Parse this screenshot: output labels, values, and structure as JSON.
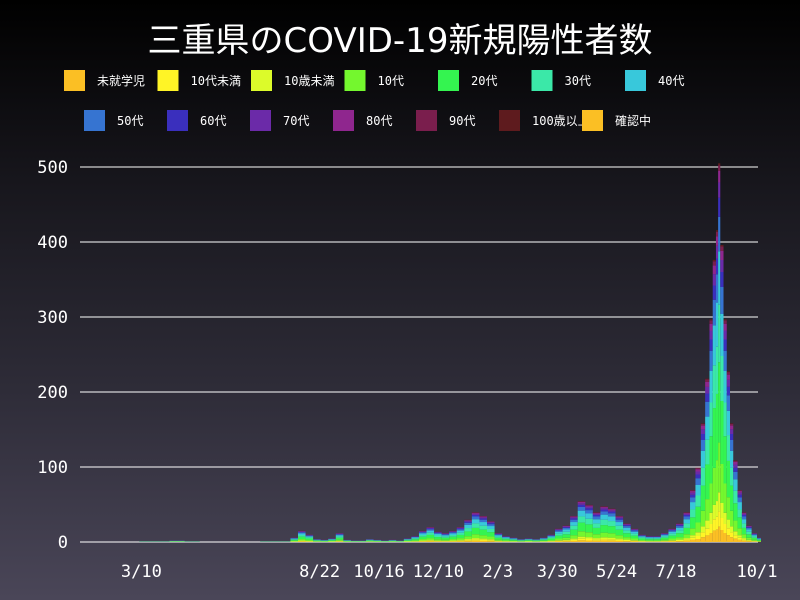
{
  "chart_data": {
    "type": "bar",
    "stacked": true,
    "title": "三重県のCOVID-19新規陽性者数",
    "xlabel": "",
    "ylabel": "",
    "ylim": [
      0,
      500
    ],
    "yticks": [
      0,
      100,
      200,
      300,
      400,
      500
    ],
    "grid": true,
    "legend_placement": "top",
    "xticks": [
      {
        "date": "2020-03-10",
        "label": "3/10"
      },
      {
        "date": "2020-08-22",
        "label": "8/22"
      },
      {
        "date": "2020-10-16",
        "label": "10/16"
      },
      {
        "date": "2020-12-10",
        "label": "12/10"
      },
      {
        "date": "2021-02-03",
        "label": "2/3"
      },
      {
        "date": "2021-03-30",
        "label": "3/30"
      },
      {
        "date": "2021-05-24",
        "label": "5/24"
      },
      {
        "date": "2021-07-18",
        "label": "7/18"
      },
      {
        "date": "2021-10-01",
        "label": "10/1"
      }
    ],
    "series": [
      {
        "name": "未就学児",
        "color": "#fbbf24",
        "share": 0.04
      },
      {
        "name": "10代未満",
        "color": "#fff426",
        "share": 0.04
      },
      {
        "name": "10歳未満",
        "color": "#dcfb2a",
        "share": 0.05
      },
      {
        "name": "10代",
        "color": "#74f72e",
        "share": 0.13
      },
      {
        "name": "20代",
        "color": "#34f450",
        "share": 0.21
      },
      {
        "name": "30代",
        "color": "#3be8a8",
        "share": 0.15
      },
      {
        "name": "40代",
        "color": "#38c8db",
        "share": 0.14
      },
      {
        "name": "50代",
        "color": "#3674d1",
        "share": 0.09
      },
      {
        "name": "60代",
        "color": "#3a2fbd",
        "share": 0.05
      },
      {
        "name": "70代",
        "color": "#6b2aa8",
        "share": 0.04
      },
      {
        "name": "80代",
        "color": "#8f268e",
        "share": 0.03
      },
      {
        "name": "90代",
        "color": "#7a1e4d",
        "share": 0.015
      },
      {
        "name": "100歳以上",
        "color": "#5e1b1e",
        "share": 0.005
      },
      {
        "name": "確認中",
        "color": "#fbbf24",
        "share": 0.0
      }
    ],
    "totals": [
      [
        "2020-01-12",
        0
      ],
      [
        "2020-01-26",
        0
      ],
      [
        "2020-02-09",
        0
      ],
      [
        "2020-02-23",
        0
      ],
      [
        "2020-03-08",
        1
      ],
      [
        "2020-03-22",
        1
      ],
      [
        "2020-04-05",
        2
      ],
      [
        "2020-04-19",
        1
      ],
      [
        "2020-05-03",
        0
      ],
      [
        "2020-05-17",
        0
      ],
      [
        "2020-05-31",
        0
      ],
      [
        "2020-06-14",
        0
      ],
      [
        "2020-06-28",
        1
      ],
      [
        "2020-07-12",
        1
      ],
      [
        "2020-07-26",
        6
      ],
      [
        "2020-08-02",
        15
      ],
      [
        "2020-08-09",
        10
      ],
      [
        "2020-08-16",
        4
      ],
      [
        "2020-08-23",
        3
      ],
      [
        "2020-08-30",
        5
      ],
      [
        "2020-09-06",
        12
      ],
      [
        "2020-09-13",
        3
      ],
      [
        "2020-09-20",
        2
      ],
      [
        "2020-09-27",
        2
      ],
      [
        "2020-10-04",
        4
      ],
      [
        "2020-10-11",
        3
      ],
      [
        "2020-10-18",
        2
      ],
      [
        "2020-10-25",
        3
      ],
      [
        "2020-11-01",
        2
      ],
      [
        "2020-11-08",
        5
      ],
      [
        "2020-11-15",
        8
      ],
      [
        "2020-11-22",
        15
      ],
      [
        "2020-11-29",
        20
      ],
      [
        "2020-12-06",
        14
      ],
      [
        "2020-12-13",
        12
      ],
      [
        "2020-12-20",
        15
      ],
      [
        "2020-12-27",
        20
      ],
      [
        "2021-01-03",
        30
      ],
      [
        "2021-01-10",
        40
      ],
      [
        "2021-01-17",
        35
      ],
      [
        "2021-01-24",
        28
      ],
      [
        "2021-01-31",
        12
      ],
      [
        "2021-02-07",
        8
      ],
      [
        "2021-02-14",
        6
      ],
      [
        "2021-02-21",
        4
      ],
      [
        "2021-02-28",
        5
      ],
      [
        "2021-03-07",
        4
      ],
      [
        "2021-03-14",
        6
      ],
      [
        "2021-03-21",
        10
      ],
      [
        "2021-03-28",
        18
      ],
      [
        "2021-04-04",
        22
      ],
      [
        "2021-04-11",
        35
      ],
      [
        "2021-04-18",
        55
      ],
      [
        "2021-04-25",
        50
      ],
      [
        "2021-05-02",
        40
      ],
      [
        "2021-05-09",
        48
      ],
      [
        "2021-05-16",
        45
      ],
      [
        "2021-05-23",
        35
      ],
      [
        "2021-05-30",
        25
      ],
      [
        "2021-06-06",
        18
      ],
      [
        "2021-06-13",
        10
      ],
      [
        "2021-06-20",
        8
      ],
      [
        "2021-06-27",
        8
      ],
      [
        "2021-07-04",
        12
      ],
      [
        "2021-07-11",
        18
      ],
      [
        "2021-07-18",
        25
      ],
      [
        "2021-07-25",
        40
      ],
      [
        "2021-07-31",
        70
      ],
      [
        "2021-08-05",
        100
      ],
      [
        "2021-08-10",
        160
      ],
      [
        "2021-08-14",
        220
      ],
      [
        "2021-08-18",
        300
      ],
      [
        "2021-08-21",
        380
      ],
      [
        "2021-08-24",
        420
      ],
      [
        "2021-08-26",
        510
      ],
      [
        "2021-08-28",
        400
      ],
      [
        "2021-08-31",
        300
      ],
      [
        "2021-09-03",
        230
      ],
      [
        "2021-09-06",
        160
      ],
      [
        "2021-09-09",
        110
      ],
      [
        "2021-09-13",
        70
      ],
      [
        "2021-09-17",
        40
      ],
      [
        "2021-09-21",
        22
      ],
      [
        "2021-09-26",
        12
      ],
      [
        "2021-10-01",
        6
      ]
    ]
  }
}
